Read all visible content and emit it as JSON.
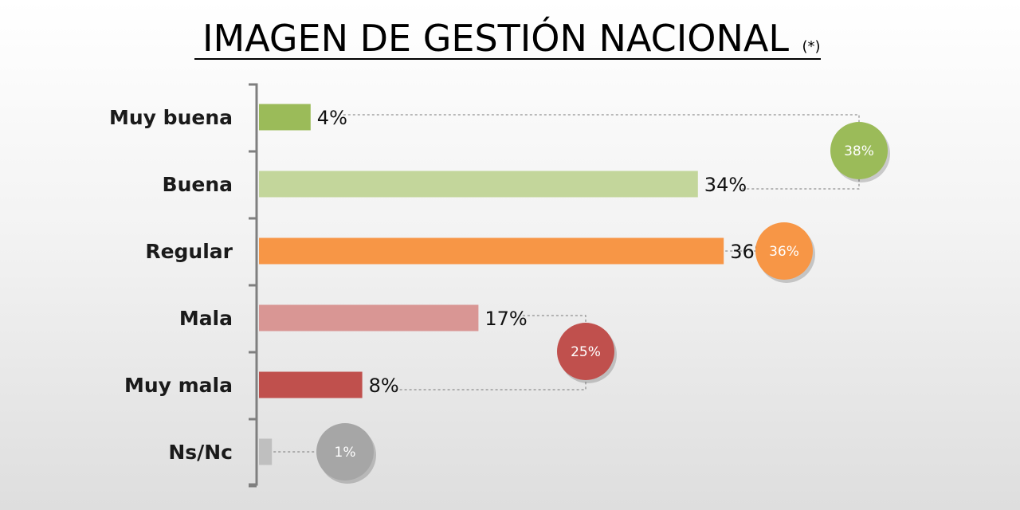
{
  "title": "IMAGEN DE GESTIÓN NACIONAL",
  "title_note": "(*)",
  "chart_data": {
    "type": "bar",
    "orientation": "horizontal",
    "title": "IMAGEN DE GESTIÓN NACIONAL",
    "categories": [
      "Muy buena",
      "Buena",
      "Regular",
      "Mala",
      "Muy mala",
      "Ns/Nc"
    ],
    "values": [
      4,
      34,
      36,
      17,
      8,
      1
    ],
    "value_labels": [
      "4%",
      "34%",
      "36%",
      "17%",
      "8%",
      ""
    ],
    "colors": [
      "#9bbb59",
      "#c3d69b",
      "#f79646",
      "#d99694",
      "#c0504d",
      "#bfbfbf"
    ],
    "unit": "%",
    "xlim": [
      0,
      100
    ],
    "grid": false,
    "legend": "none",
    "groups": [
      {
        "label": "38%",
        "value": 38,
        "members": [
          0,
          1
        ],
        "color": "#9bbb59"
      },
      {
        "label": "36%",
        "value": 36,
        "members": [
          2
        ],
        "color": "#f79646"
      },
      {
        "label": "25%",
        "value": 25,
        "members": [
          3,
          4
        ],
        "color": "#c0504d"
      },
      {
        "label": "1%",
        "value": 1,
        "members": [
          5
        ],
        "color": "#a6a6a6"
      }
    ]
  }
}
